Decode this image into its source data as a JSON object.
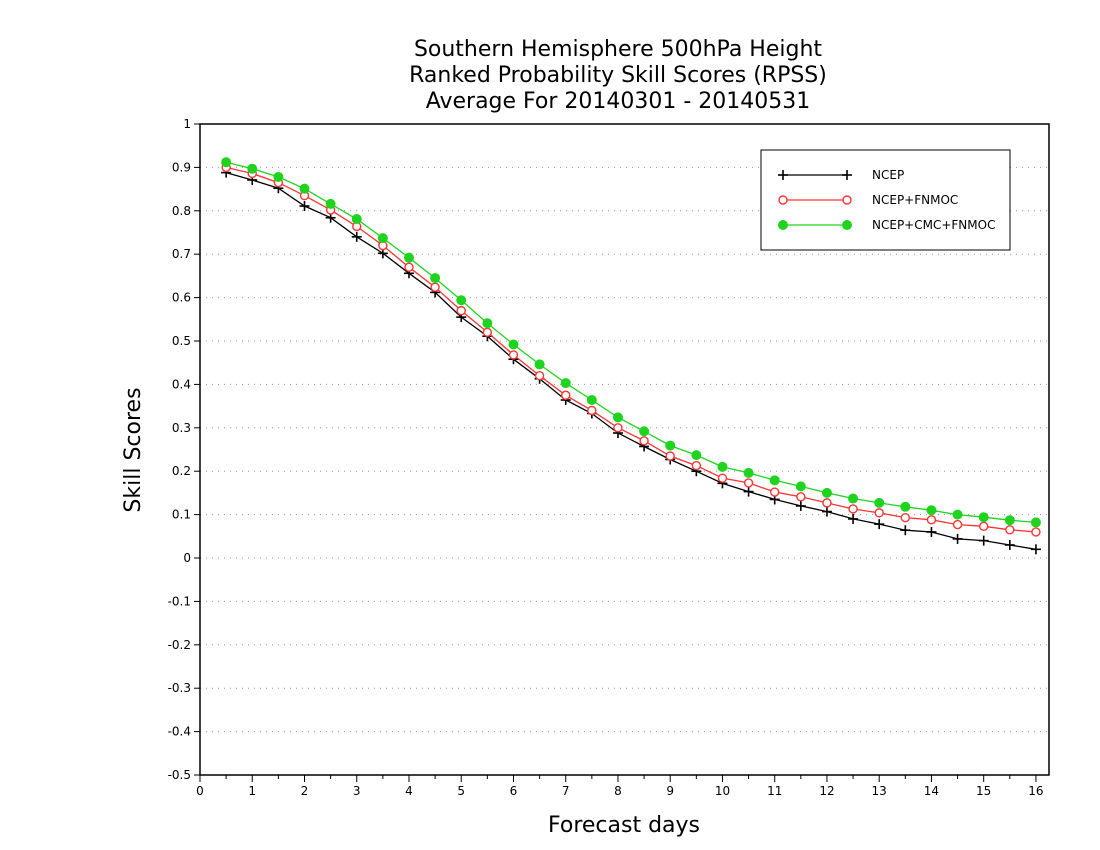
{
  "chart_data": {
    "type": "line",
    "title": [
      "Southern Hemisphere 500hPa Height",
      "Ranked Probability Skill Scores (RPSS)",
      "Average For 20140301 - 20140531"
    ],
    "xlabel": "Forecast days",
    "ylabel": "Skill Scores",
    "xlim": [
      0,
      16.25
    ],
    "ylim": [
      -0.5,
      1
    ],
    "xticks": [
      0,
      1,
      2,
      3,
      4,
      5,
      6,
      7,
      8,
      9,
      10,
      11,
      12,
      13,
      14,
      15,
      16
    ],
    "yticks": [
      -0.5,
      -0.4,
      -0.3,
      -0.2,
      -0.1,
      0,
      0.1,
      0.2,
      0.3,
      0.4,
      0.5,
      0.6,
      0.7,
      0.8,
      0.9,
      1
    ],
    "ytick_labels": [
      "-0.5",
      "-0.4",
      "-0.3",
      "-0.2",
      "-0.1",
      "0",
      "0.1",
      "0.2",
      "0.3",
      "0.4",
      "0.5",
      "0.6",
      "0.7",
      "0.8",
      "0.9",
      "1"
    ],
    "grid": true,
    "legend_position": "top-right",
    "x": [
      0.5,
      1,
      1.5,
      2,
      2.5,
      3,
      3.5,
      4,
      4.5,
      5,
      5.5,
      6,
      6.5,
      7,
      7.5,
      8,
      8.5,
      9,
      9.5,
      10,
      10.5,
      11,
      11.5,
      12,
      12.5,
      13,
      13.5,
      14,
      14.5,
      15,
      15.5,
      16
    ],
    "series": [
      {
        "name": "NCEP",
        "color": "#000000",
        "marker": "plus",
        "values": [
          0.888,
          0.871,
          0.852,
          0.811,
          0.784,
          0.74,
          0.702,
          0.656,
          0.612,
          0.555,
          0.511,
          0.458,
          0.413,
          0.364,
          0.333,
          0.288,
          0.257,
          0.227,
          0.2,
          0.172,
          0.153,
          0.135,
          0.12,
          0.107,
          0.09,
          0.078,
          0.064,
          0.06,
          0.044,
          0.04,
          0.03,
          0.02
        ]
      },
      {
        "name": "NCEP+FNMOC",
        "color": "#ff3333",
        "marker": "open-circle",
        "values": [
          0.9,
          0.886,
          0.865,
          0.835,
          0.802,
          0.764,
          0.72,
          0.67,
          0.624,
          0.57,
          0.52,
          0.468,
          0.42,
          0.375,
          0.34,
          0.3,
          0.27,
          0.235,
          0.213,
          0.184,
          0.173,
          0.152,
          0.141,
          0.127,
          0.113,
          0.104,
          0.093,
          0.088,
          0.077,
          0.073,
          0.065,
          0.06
        ]
      },
      {
        "name": "NCEP+CMC+FNMOC",
        "color": "#1fd31f",
        "marker": "filled-circle",
        "values": [
          0.912,
          0.897,
          0.878,
          0.851,
          0.816,
          0.781,
          0.737,
          0.692,
          0.645,
          0.594,
          0.541,
          0.492,
          0.446,
          0.403,
          0.364,
          0.324,
          0.292,
          0.259,
          0.237,
          0.21,
          0.196,
          0.179,
          0.165,
          0.15,
          0.137,
          0.127,
          0.118,
          0.11,
          0.1,
          0.094,
          0.087,
          0.082
        ]
      }
    ]
  }
}
